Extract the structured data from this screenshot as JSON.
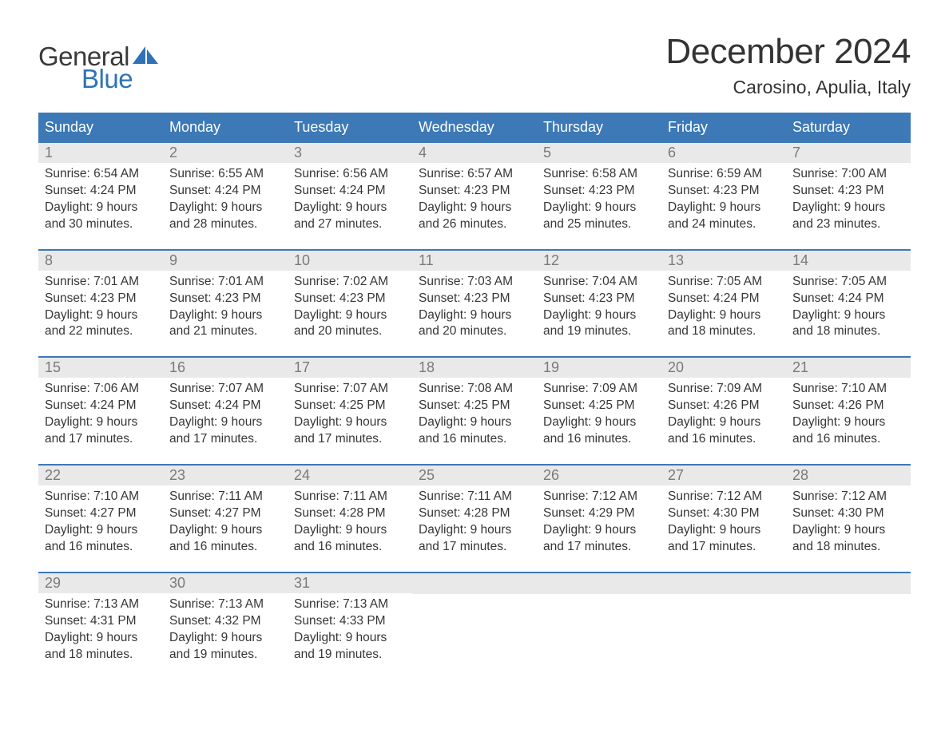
{
  "logo": {
    "word1": "General",
    "word2": "Blue"
  },
  "header": {
    "title": "December 2024",
    "location": "Carosino, Apulia, Italy"
  },
  "colors": {
    "header_bar": "#3c79b6",
    "daynum_bg": "#e9e9e9",
    "daynum_text": "#7a7a7a",
    "body_text": "#363636",
    "logo_gray": "#3a3a3a",
    "logo_blue": "#2f73b6",
    "background": "#ffffff"
  },
  "weekdays": [
    "Sunday",
    "Monday",
    "Tuesday",
    "Wednesday",
    "Thursday",
    "Friday",
    "Saturday"
  ],
  "weeks": [
    [
      {
        "n": "1",
        "sunrise": "Sunrise: 6:54 AM",
        "sunset": "Sunset: 4:24 PM",
        "day1": "Daylight: 9 hours",
        "day2": "and 30 minutes."
      },
      {
        "n": "2",
        "sunrise": "Sunrise: 6:55 AM",
        "sunset": "Sunset: 4:24 PM",
        "day1": "Daylight: 9 hours",
        "day2": "and 28 minutes."
      },
      {
        "n": "3",
        "sunrise": "Sunrise: 6:56 AM",
        "sunset": "Sunset: 4:24 PM",
        "day1": "Daylight: 9 hours",
        "day2": "and 27 minutes."
      },
      {
        "n": "4",
        "sunrise": "Sunrise: 6:57 AM",
        "sunset": "Sunset: 4:23 PM",
        "day1": "Daylight: 9 hours",
        "day2": "and 26 minutes."
      },
      {
        "n": "5",
        "sunrise": "Sunrise: 6:58 AM",
        "sunset": "Sunset: 4:23 PM",
        "day1": "Daylight: 9 hours",
        "day2": "and 25 minutes."
      },
      {
        "n": "6",
        "sunrise": "Sunrise: 6:59 AM",
        "sunset": "Sunset: 4:23 PM",
        "day1": "Daylight: 9 hours",
        "day2": "and 24 minutes."
      },
      {
        "n": "7",
        "sunrise": "Sunrise: 7:00 AM",
        "sunset": "Sunset: 4:23 PM",
        "day1": "Daylight: 9 hours",
        "day2": "and 23 minutes."
      }
    ],
    [
      {
        "n": "8",
        "sunrise": "Sunrise: 7:01 AM",
        "sunset": "Sunset: 4:23 PM",
        "day1": "Daylight: 9 hours",
        "day2": "and 22 minutes."
      },
      {
        "n": "9",
        "sunrise": "Sunrise: 7:01 AM",
        "sunset": "Sunset: 4:23 PM",
        "day1": "Daylight: 9 hours",
        "day2": "and 21 minutes."
      },
      {
        "n": "10",
        "sunrise": "Sunrise: 7:02 AM",
        "sunset": "Sunset: 4:23 PM",
        "day1": "Daylight: 9 hours",
        "day2": "and 20 minutes."
      },
      {
        "n": "11",
        "sunrise": "Sunrise: 7:03 AM",
        "sunset": "Sunset: 4:23 PM",
        "day1": "Daylight: 9 hours",
        "day2": "and 20 minutes."
      },
      {
        "n": "12",
        "sunrise": "Sunrise: 7:04 AM",
        "sunset": "Sunset: 4:23 PM",
        "day1": "Daylight: 9 hours",
        "day2": "and 19 minutes."
      },
      {
        "n": "13",
        "sunrise": "Sunrise: 7:05 AM",
        "sunset": "Sunset: 4:24 PM",
        "day1": "Daylight: 9 hours",
        "day2": "and 18 minutes."
      },
      {
        "n": "14",
        "sunrise": "Sunrise: 7:05 AM",
        "sunset": "Sunset: 4:24 PM",
        "day1": "Daylight: 9 hours",
        "day2": "and 18 minutes."
      }
    ],
    [
      {
        "n": "15",
        "sunrise": "Sunrise: 7:06 AM",
        "sunset": "Sunset: 4:24 PM",
        "day1": "Daylight: 9 hours",
        "day2": "and 17 minutes."
      },
      {
        "n": "16",
        "sunrise": "Sunrise: 7:07 AM",
        "sunset": "Sunset: 4:24 PM",
        "day1": "Daylight: 9 hours",
        "day2": "and 17 minutes."
      },
      {
        "n": "17",
        "sunrise": "Sunrise: 7:07 AM",
        "sunset": "Sunset: 4:25 PM",
        "day1": "Daylight: 9 hours",
        "day2": "and 17 minutes."
      },
      {
        "n": "18",
        "sunrise": "Sunrise: 7:08 AM",
        "sunset": "Sunset: 4:25 PM",
        "day1": "Daylight: 9 hours",
        "day2": "and 16 minutes."
      },
      {
        "n": "19",
        "sunrise": "Sunrise: 7:09 AM",
        "sunset": "Sunset: 4:25 PM",
        "day1": "Daylight: 9 hours",
        "day2": "and 16 minutes."
      },
      {
        "n": "20",
        "sunrise": "Sunrise: 7:09 AM",
        "sunset": "Sunset: 4:26 PM",
        "day1": "Daylight: 9 hours",
        "day2": "and 16 minutes."
      },
      {
        "n": "21",
        "sunrise": "Sunrise: 7:10 AM",
        "sunset": "Sunset: 4:26 PM",
        "day1": "Daylight: 9 hours",
        "day2": "and 16 minutes."
      }
    ],
    [
      {
        "n": "22",
        "sunrise": "Sunrise: 7:10 AM",
        "sunset": "Sunset: 4:27 PM",
        "day1": "Daylight: 9 hours",
        "day2": "and 16 minutes."
      },
      {
        "n": "23",
        "sunrise": "Sunrise: 7:11 AM",
        "sunset": "Sunset: 4:27 PM",
        "day1": "Daylight: 9 hours",
        "day2": "and 16 minutes."
      },
      {
        "n": "24",
        "sunrise": "Sunrise: 7:11 AM",
        "sunset": "Sunset: 4:28 PM",
        "day1": "Daylight: 9 hours",
        "day2": "and 16 minutes."
      },
      {
        "n": "25",
        "sunrise": "Sunrise: 7:11 AM",
        "sunset": "Sunset: 4:28 PM",
        "day1": "Daylight: 9 hours",
        "day2": "and 17 minutes."
      },
      {
        "n": "26",
        "sunrise": "Sunrise: 7:12 AM",
        "sunset": "Sunset: 4:29 PM",
        "day1": "Daylight: 9 hours",
        "day2": "and 17 minutes."
      },
      {
        "n": "27",
        "sunrise": "Sunrise: 7:12 AM",
        "sunset": "Sunset: 4:30 PM",
        "day1": "Daylight: 9 hours",
        "day2": "and 17 minutes."
      },
      {
        "n": "28",
        "sunrise": "Sunrise: 7:12 AM",
        "sunset": "Sunset: 4:30 PM",
        "day1": "Daylight: 9 hours",
        "day2": "and 18 minutes."
      }
    ],
    [
      {
        "n": "29",
        "sunrise": "Sunrise: 7:13 AM",
        "sunset": "Sunset: 4:31 PM",
        "day1": "Daylight: 9 hours",
        "day2": "and 18 minutes."
      },
      {
        "n": "30",
        "sunrise": "Sunrise: 7:13 AM",
        "sunset": "Sunset: 4:32 PM",
        "day1": "Daylight: 9 hours",
        "day2": "and 19 minutes."
      },
      {
        "n": "31",
        "sunrise": "Sunrise: 7:13 AM",
        "sunset": "Sunset: 4:33 PM",
        "day1": "Daylight: 9 hours",
        "day2": "and 19 minutes."
      },
      {
        "empty": true
      },
      {
        "empty": true
      },
      {
        "empty": true
      },
      {
        "empty": true
      }
    ]
  ]
}
